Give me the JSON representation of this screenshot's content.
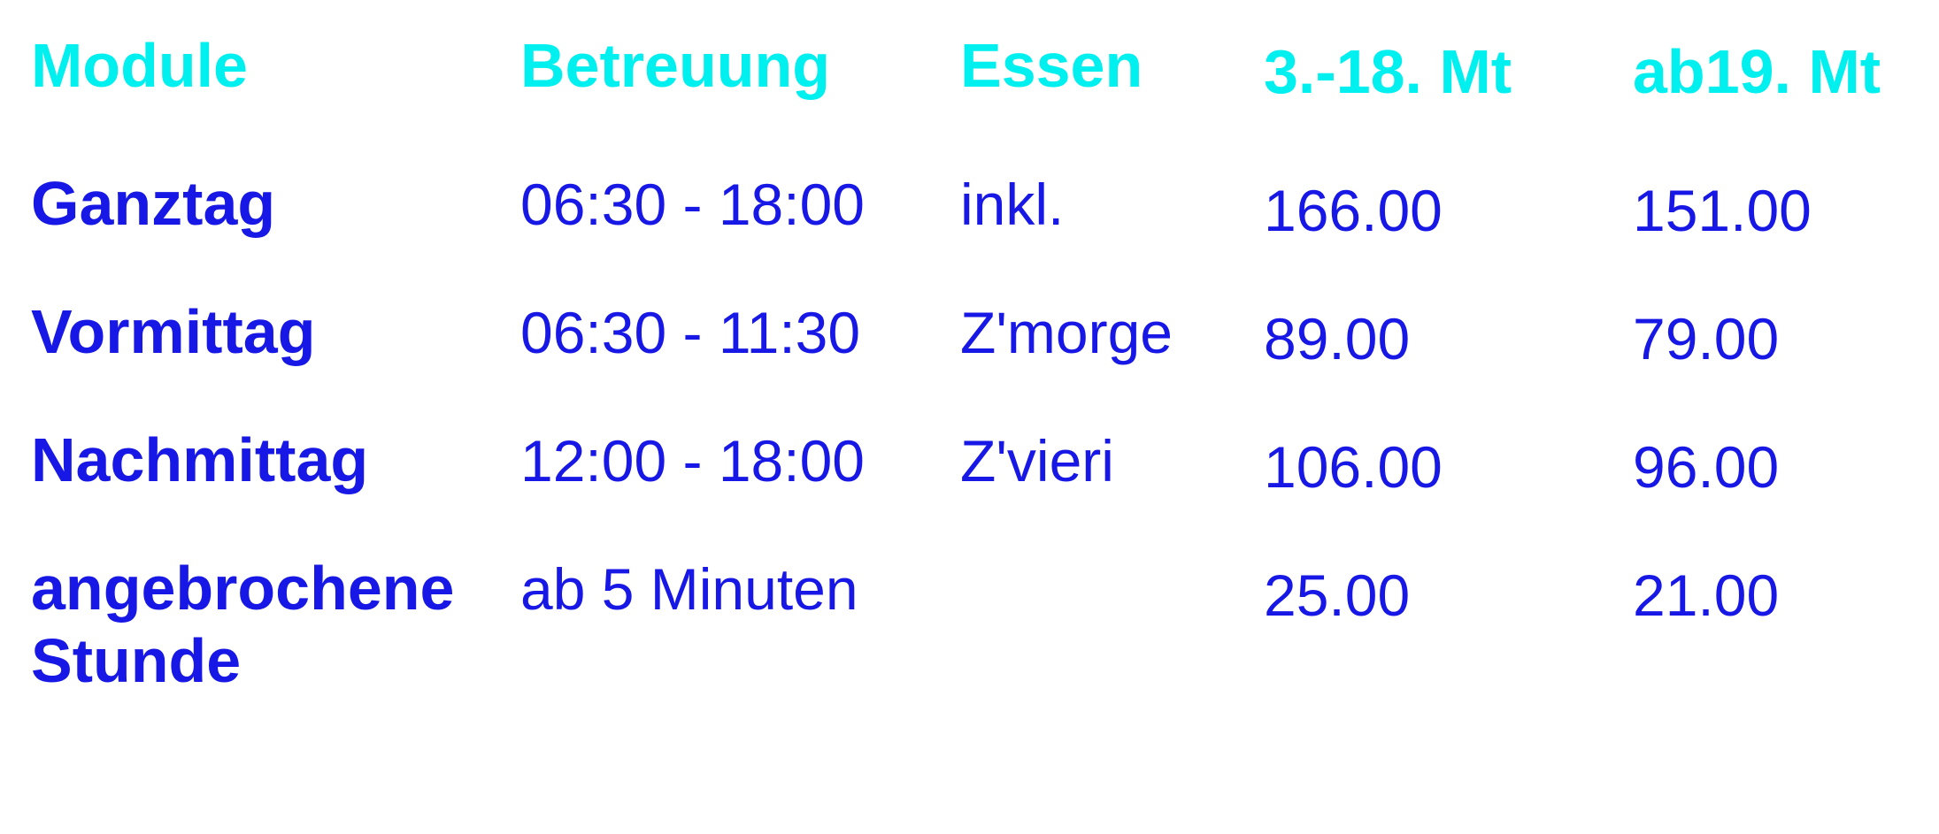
{
  "colors": {
    "background": "#ffffff",
    "header_text": "#00efef",
    "body_text": "#1717e6"
  },
  "table": {
    "headers": {
      "module": "Module",
      "betreuung": "Betreuung",
      "essen": "Essen",
      "price_3_18_mt": "3.-18. Mt",
      "price_ab_19_mt": "ab19. Mt"
    },
    "rows": [
      {
        "module": "Ganztag",
        "betreuung": "06:30 - 18:00",
        "essen": "inkl.",
        "price_3_18_mt": "166.00",
        "price_ab_19_mt": "151.00"
      },
      {
        "module": "Vormittag",
        "betreuung": "06:30 - 11:30",
        "essen": "Z'morge",
        "price_3_18_mt": "89.00",
        "price_ab_19_mt": "79.00"
      },
      {
        "module": "Nachmittag",
        "betreuung": "12:00 - 18:00",
        "essen": "Z'vieri",
        "price_3_18_mt": "106.00",
        "price_ab_19_mt": "96.00"
      },
      {
        "module": "angebrochene Stunde",
        "betreuung": "ab 5 Minuten",
        "essen": "",
        "price_3_18_mt": "25.00",
        "price_ab_19_mt": "21.00"
      }
    ]
  }
}
